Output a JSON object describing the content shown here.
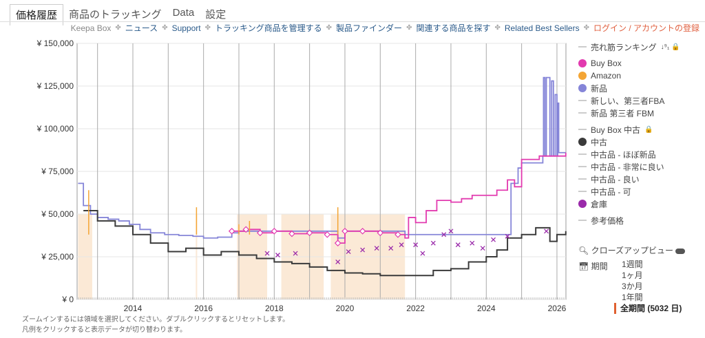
{
  "tabs": [
    "価格履歴",
    "商品のトラッキング",
    "Data",
    "設定"
  ],
  "nav": {
    "keepa_box": "Keepa Box",
    "links": [
      "ニュース",
      "Support",
      "トラッキング商品を管理する",
      "製品ファインダー",
      "関連する商品を探す",
      "Related Best Sellers"
    ],
    "login": "ログイン / アカウントの登録"
  },
  "legend": [
    {
      "label": "売れ筋ランキング",
      "type": "line",
      "extra": "↓⁹₁ 🔒"
    },
    {
      "label": "Buy Box",
      "type": "dot",
      "color": "#e23aaf"
    },
    {
      "label": "Amazon",
      "type": "dot",
      "color": "#f4a534"
    },
    {
      "label": "新品",
      "type": "dot",
      "color": "#8585d8"
    },
    {
      "label": "新しい、第三者FBA",
      "type": "line"
    },
    {
      "label": "新品 第三者 FBM",
      "type": "line"
    },
    {
      "label": "Buy Box 中古",
      "type": "line",
      "extra": "🔒"
    },
    {
      "label": "中古",
      "type": "dot",
      "color": "#3a3a3a"
    },
    {
      "label": "中古品 - ほぼ新品",
      "type": "line"
    },
    {
      "label": "中古品 - 非常に良い",
      "type": "line"
    },
    {
      "label": "中古品 - 良い",
      "type": "line"
    },
    {
      "label": "中古品 - 可",
      "type": "line"
    },
    {
      "label": "倉庫",
      "type": "dot",
      "color": "#9a2aaa"
    },
    {
      "label": "参考価格",
      "type": "line"
    }
  ],
  "tools": {
    "closeup": "クローズアップビュー",
    "period_label": "期間",
    "periods": [
      "1週間",
      "1ヶ月",
      "3か月",
      "1年間",
      "全期間 (5032 日)"
    ],
    "selected_period": 4
  },
  "hints": [
    "ズームインするには領域を選択してください。ダブルクリックするとリセットします。",
    "凡例をクリックすると表示データが切り替わります。"
  ],
  "chart_data": {
    "type": "line",
    "title": "",
    "xlabel": "",
    "ylabel": "",
    "xlim": [
      2012.42,
      2026.25
    ],
    "ylim": [
      0,
      150000
    ],
    "yticks": [
      0,
      25000,
      50000,
      75000,
      100000,
      125000,
      150000
    ],
    "ytick_labels": [
      "¥ 0",
      "¥ 25,000",
      "¥ 50,000",
      "¥ 75,000",
      "¥ 100,000",
      "¥ 125,000",
      "¥ 150,000"
    ],
    "xticks": [
      2014,
      2016,
      2018,
      2020,
      2022,
      2024,
      2026
    ],
    "xtick_labels": [
      "2014",
      "2016",
      "2018",
      "2020",
      "2022",
      "2024",
      "2026"
    ],
    "grid": true,
    "legend_position": "right",
    "series": [
      {
        "name": "新品",
        "color": "#8585d8",
        "points": [
          [
            2012.45,
            68000
          ],
          [
            2012.6,
            55000
          ],
          [
            2012.8,
            50000
          ],
          [
            2013.0,
            48000
          ],
          [
            2013.3,
            47000
          ],
          [
            2013.6,
            46000
          ],
          [
            2013.9,
            44000
          ],
          [
            2014.2,
            41000
          ],
          [
            2014.5,
            39000
          ],
          [
            2014.9,
            38000
          ],
          [
            2015.3,
            37500
          ],
          [
            2015.7,
            37000
          ],
          [
            2016.0,
            36000
          ],
          [
            2016.4,
            36500
          ],
          [
            2016.8,
            39000
          ],
          [
            2017.0,
            40000
          ],
          [
            2019.8,
            36000
          ],
          [
            2020.0,
            40000
          ],
          [
            2021.7,
            38000
          ],
          [
            2024.7,
            68000
          ],
          [
            2024.9,
            77000
          ],
          [
            2025.0,
            80000
          ],
          [
            2025.6,
            84000
          ],
          [
            2025.62,
            130000
          ],
          [
            2025.66,
            84000
          ],
          [
            2025.7,
            130000
          ],
          [
            2025.78,
            130000
          ],
          [
            2025.8,
            84000
          ],
          [
            2025.85,
            128000
          ],
          [
            2025.9,
            84000
          ],
          [
            2025.95,
            120000
          ],
          [
            2026.0,
            84000
          ],
          [
            2026.02,
            115000
          ],
          [
            2026.05,
            86000
          ],
          [
            2026.25,
            86000
          ]
        ]
      },
      {
        "name": "Buy Box",
        "color": "#e23aaf",
        "points": [
          [
            2016.8,
            40000
          ],
          [
            2017.2,
            41000
          ],
          [
            2017.6,
            39000
          ],
          [
            2018.0,
            40000
          ],
          [
            2018.5,
            38500
          ],
          [
            2019.0,
            39000
          ],
          [
            2019.5,
            38000
          ],
          [
            2019.8,
            33000
          ],
          [
            2020.0,
            40000
          ],
          [
            2020.5,
            40000
          ],
          [
            2021.0,
            39000
          ],
          [
            2021.5,
            38000
          ],
          [
            2021.7,
            36000
          ],
          [
            2021.8,
            48000
          ],
          [
            2022.0,
            45000
          ],
          [
            2022.3,
            52000
          ],
          [
            2022.6,
            58000
          ],
          [
            2023.0,
            57000
          ],
          [
            2023.3,
            59000
          ],
          [
            2023.6,
            61000
          ],
          [
            2024.0,
            61000
          ],
          [
            2024.3,
            64000
          ],
          [
            2024.6,
            70000
          ],
          [
            2024.8,
            66000
          ],
          [
            2025.0,
            82000
          ],
          [
            2025.5,
            84000
          ],
          [
            2026.25,
            86000
          ]
        ]
      },
      {
        "name": "中古",
        "color": "#3a3a3a",
        "points": [
          [
            2012.6,
            52000
          ],
          [
            2013.0,
            46000
          ],
          [
            2013.5,
            43000
          ],
          [
            2014.0,
            38000
          ],
          [
            2014.5,
            33000
          ],
          [
            2015.0,
            28000
          ],
          [
            2015.5,
            30000
          ],
          [
            2016.0,
            26000
          ],
          [
            2016.5,
            28000
          ],
          [
            2017.0,
            26000
          ],
          [
            2017.5,
            24000
          ],
          [
            2018.0,
            22000
          ],
          [
            2018.5,
            21000
          ],
          [
            2019.0,
            19000
          ],
          [
            2019.5,
            17000
          ],
          [
            2020.0,
            15500
          ],
          [
            2020.5,
            15000
          ],
          [
            2021.0,
            14000
          ],
          [
            2021.5,
            14000
          ],
          [
            2022.0,
            14000
          ],
          [
            2022.5,
            17000
          ],
          [
            2023.0,
            18000
          ],
          [
            2023.5,
            22000
          ],
          [
            2024.0,
            25000
          ],
          [
            2024.3,
            29000
          ],
          [
            2024.6,
            36000
          ],
          [
            2025.0,
            38000
          ],
          [
            2025.4,
            42000
          ],
          [
            2025.8,
            34000
          ],
          [
            2026.0,
            38000
          ],
          [
            2026.25,
            40000
          ]
        ]
      },
      {
        "name": "Amazon",
        "color": "#f4a534",
        "points": [
          [
            2012.75,
            64000
          ],
          [
            2015.8,
            54000
          ],
          [
            2017.0,
            44000
          ],
          [
            2017.3,
            46000
          ],
          [
            2019.8,
            54000
          ]
        ]
      },
      {
        "name": "倉庫",
        "color": "#9a2aaa",
        "marker": "x",
        "points": [
          [
            2017.8,
            27000
          ],
          [
            2018.1,
            26000
          ],
          [
            2018.6,
            27000
          ],
          [
            2019.8,
            22000
          ],
          [
            2020.1,
            28000
          ],
          [
            2020.5,
            29000
          ],
          [
            2020.9,
            30000
          ],
          [
            2021.3,
            30000
          ],
          [
            2021.6,
            32000
          ],
          [
            2022.0,
            32000
          ],
          [
            2022.2,
            27000
          ],
          [
            2022.5,
            33000
          ],
          [
            2022.8,
            38000
          ],
          [
            2023.0,
            40000
          ],
          [
            2023.2,
            32000
          ],
          [
            2023.6,
            33000
          ],
          [
            2023.9,
            30000
          ],
          [
            2024.2,
            35000
          ],
          [
            2024.6,
            37000
          ],
          [
            2025.7,
            40000
          ]
        ]
      }
    ],
    "amazon_in_stock_ranges": [
      [
        2012.45,
        2012.85
      ],
      [
        2015.78,
        2015.82
      ],
      [
        2016.95,
        2017.8
      ],
      [
        2018.2,
        2019.4
      ],
      [
        2019.6,
        2021.7
      ]
    ]
  }
}
